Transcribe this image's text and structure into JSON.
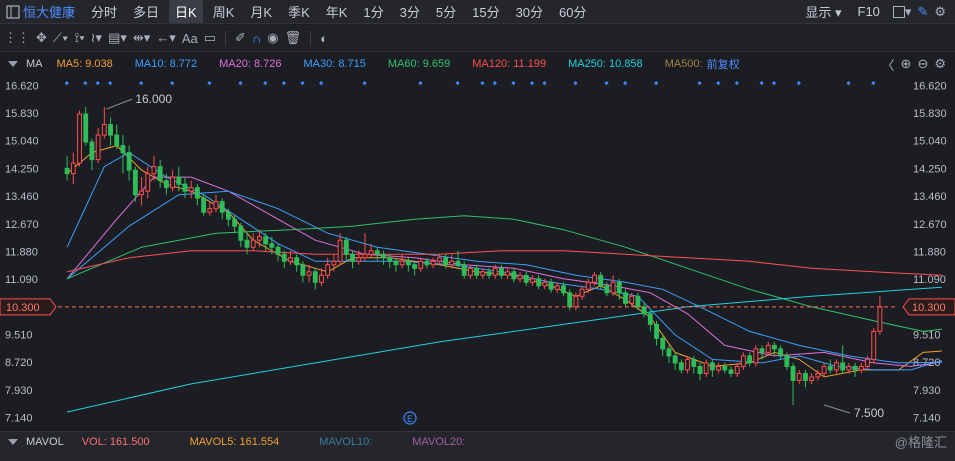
{
  "topbar": {
    "stock_name": "恒大健康",
    "periods": [
      "分时",
      "多日",
      "日K",
      "周K",
      "月K",
      "季K",
      "年K",
      "1分",
      "3分",
      "5分",
      "15分",
      "30分",
      "60分"
    ],
    "active_period": "日K",
    "display_label": "显示",
    "f10_label": "F10"
  },
  "toolbar": {
    "text_tool": "Aa"
  },
  "indicator_bar": {
    "name": "MA",
    "items": [
      {
        "label": "MA5: 9.038",
        "color": "#f0a030"
      },
      {
        "label": "MA10: 8.772",
        "color": "#3aa0ff"
      },
      {
        "label": "MA20: 8.726",
        "color": "#e070e0"
      },
      {
        "label": "MA30: 8.715",
        "color": "#3aa0ff"
      },
      {
        "label": "MA60: 9.659",
        "color": "#30c070"
      },
      {
        "label": "MA120: 11.199",
        "color": "#ff5050"
      },
      {
        "label": "MA250: 10.858",
        "color": "#20d0e0"
      },
      {
        "label": "MA500:",
        "color": "#a08040"
      }
    ],
    "adjust_label": "前复权"
  },
  "volume_bar": {
    "name": "MAVOL",
    "items": [
      {
        "label": "VOL: 161.500",
        "color": "#ff7070"
      },
      {
        "label": "MAVOL5: 161.554",
        "color": "#f0a030"
      },
      {
        "label": "MAVOL10:",
        "color": "#3a7aa0"
      },
      {
        "label": "MAVOL20:",
        "color": "#a060a0"
      }
    ]
  },
  "watermark": "@格隆汇",
  "chart_data": {
    "type": "candlestick",
    "y_ticks": [
      16.62,
      15.83,
      15.04,
      14.25,
      13.46,
      12.67,
      11.88,
      11.09,
      9.51,
      8.72,
      7.93,
      7.14
    ],
    "y_range": [
      6.9,
      16.8
    ],
    "current_price": 10.3,
    "annotations": [
      {
        "text": "16.000",
        "type": "high"
      },
      {
        "text": "7.500",
        "type": "low"
      }
    ],
    "event_marker": "E",
    "candles": [
      [
        14.25,
        14.1,
        14.6,
        13.9
      ],
      [
        14.1,
        14.4,
        14.7,
        13.8
      ],
      [
        14.4,
        15.8,
        15.9,
        14.3
      ],
      [
        15.8,
        15.0,
        16.0,
        14.9
      ],
      [
        15.0,
        14.5,
        15.1,
        14.2
      ],
      [
        14.5,
        15.2,
        15.4,
        14.4
      ],
      [
        15.2,
        15.5,
        16.0,
        15.1
      ],
      [
        15.5,
        15.2,
        15.7,
        14.9
      ],
      [
        15.2,
        14.9,
        15.5,
        14.8
      ],
      [
        14.9,
        14.7,
        15.2,
        14.1
      ],
      [
        14.7,
        14.2,
        14.9,
        13.9
      ],
      [
        14.2,
        13.5,
        14.3,
        13.3
      ],
      [
        13.5,
        13.6,
        14.0,
        13.2
      ],
      [
        13.6,
        14.1,
        14.3,
        13.4
      ],
      [
        14.1,
        14.3,
        14.6,
        13.9
      ],
      [
        14.3,
        13.9,
        14.5,
        13.7
      ],
      [
        13.9,
        13.7,
        14.1,
        13.5
      ],
      [
        13.7,
        14.0,
        14.2,
        13.6
      ],
      [
        14.0,
        13.8,
        14.3,
        13.6
      ],
      [
        13.8,
        13.6,
        14.0,
        13.4
      ],
      [
        13.6,
        13.7,
        13.9,
        13.4
      ],
      [
        13.7,
        13.4,
        13.8,
        13.2
      ],
      [
        13.4,
        13.0,
        13.5,
        12.9
      ],
      [
        13.0,
        13.1,
        13.3,
        12.9
      ],
      [
        13.1,
        13.3,
        13.5,
        13.0
      ],
      [
        13.3,
        13.0,
        13.4,
        12.8
      ],
      [
        13.0,
        12.8,
        13.1,
        12.6
      ],
      [
        12.8,
        12.6,
        12.9,
        12.4
      ],
      [
        12.6,
        12.2,
        12.7,
        12.0
      ],
      [
        12.2,
        12.0,
        12.4,
        11.8
      ],
      [
        12.0,
        12.2,
        12.4,
        11.9
      ],
      [
        12.2,
        12.3,
        12.5,
        12.0
      ],
      [
        12.3,
        12.1,
        12.4,
        11.9
      ],
      [
        12.1,
        12.0,
        12.3,
        11.8
      ],
      [
        12.0,
        11.8,
        12.1,
        11.6
      ],
      [
        11.8,
        11.6,
        11.9,
        11.4
      ],
      [
        11.6,
        11.7,
        11.9,
        11.5
      ],
      [
        11.7,
        11.5,
        11.8,
        11.3
      ],
      [
        11.5,
        11.2,
        11.6,
        11.0
      ],
      [
        11.2,
        11.3,
        11.5,
        11.0
      ],
      [
        11.3,
        11.0,
        11.4,
        10.8
      ],
      [
        11.0,
        11.2,
        11.4,
        10.9
      ],
      [
        11.2,
        11.5,
        11.7,
        11.1
      ],
      [
        11.5,
        11.6,
        11.8,
        11.3
      ],
      [
        11.6,
        12.2,
        12.4,
        11.5
      ],
      [
        12.2,
        11.8,
        12.3,
        11.6
      ],
      [
        11.8,
        11.6,
        11.9,
        11.4
      ],
      [
        11.6,
        11.7,
        11.9,
        11.5
      ],
      [
        11.7,
        11.8,
        12.4,
        11.6
      ],
      [
        11.8,
        11.9,
        12.1,
        11.7
      ],
      [
        11.9,
        11.8,
        12.0,
        11.6
      ],
      [
        11.8,
        11.7,
        11.9,
        11.5
      ],
      [
        11.7,
        11.6,
        11.8,
        11.4
      ],
      [
        11.6,
        11.5,
        11.7,
        11.3
      ],
      [
        11.5,
        11.6,
        11.8,
        11.4
      ],
      [
        11.6,
        11.5,
        11.7,
        11.3
      ],
      [
        11.5,
        11.4,
        11.6,
        11.2
      ],
      [
        11.4,
        11.6,
        11.7,
        11.3
      ],
      [
        11.6,
        11.5,
        11.7,
        11.4
      ],
      [
        11.5,
        11.6,
        11.7,
        11.4
      ],
      [
        11.6,
        11.7,
        11.8,
        11.5
      ],
      [
        11.7,
        11.5,
        11.8,
        11.4
      ],
      [
        11.5,
        11.6,
        11.8,
        11.4
      ],
      [
        11.6,
        11.5,
        11.9,
        11.4
      ],
      [
        11.5,
        11.2,
        11.6,
        11.1
      ],
      [
        11.2,
        11.4,
        11.5,
        11.1
      ],
      [
        11.4,
        11.2,
        11.5,
        11.1
      ],
      [
        11.2,
        11.3,
        11.4,
        11.1
      ],
      [
        11.3,
        11.2,
        11.4,
        11.1
      ],
      [
        11.2,
        11.4,
        11.5,
        11.1
      ],
      [
        11.4,
        11.2,
        11.5,
        11.1
      ],
      [
        11.2,
        11.3,
        11.4,
        11.1
      ],
      [
        11.3,
        11.1,
        11.4,
        11.0
      ],
      [
        11.1,
        11.2,
        11.3,
        11.0
      ],
      [
        11.2,
        11.0,
        11.3,
        10.9
      ],
      [
        11.0,
        11.1,
        11.2,
        10.9
      ],
      [
        11.1,
        10.9,
        11.2,
        10.8
      ],
      [
        10.9,
        11.0,
        11.1,
        10.8
      ],
      [
        11.0,
        10.8,
        11.1,
        10.7
      ],
      [
        10.8,
        10.9,
        11.0,
        10.7
      ],
      [
        10.9,
        10.7,
        11.0,
        10.6
      ],
      [
        10.7,
        10.3,
        10.8,
        10.2
      ],
      [
        10.3,
        10.6,
        10.7,
        10.2
      ],
      [
        10.6,
        10.8,
        10.9,
        10.5
      ],
      [
        10.8,
        11.0,
        11.1,
        10.7
      ],
      [
        11.0,
        11.2,
        11.3,
        10.9
      ],
      [
        11.2,
        10.9,
        11.3,
        10.8
      ],
      [
        10.9,
        10.7,
        11.0,
        10.6
      ],
      [
        10.7,
        11.0,
        11.2,
        10.6
      ],
      [
        11.0,
        10.7,
        11.1,
        10.5
      ],
      [
        10.7,
        10.4,
        10.8,
        10.3
      ],
      [
        10.4,
        10.6,
        10.7,
        10.3
      ],
      [
        10.6,
        10.3,
        10.7,
        10.2
      ],
      [
        10.3,
        10.1,
        10.4,
        10.0
      ],
      [
        10.1,
        9.8,
        10.2,
        9.6
      ],
      [
        9.8,
        9.4,
        9.9,
        9.2
      ],
      [
        9.4,
        9.1,
        9.5,
        8.9
      ],
      [
        9.1,
        8.9,
        9.2,
        8.7
      ],
      [
        8.9,
        8.7,
        9.0,
        8.5
      ],
      [
        8.7,
        8.5,
        8.8,
        8.4
      ],
      [
        8.5,
        8.8,
        8.9,
        8.4
      ],
      [
        8.8,
        8.6,
        8.9,
        8.4
      ],
      [
        8.6,
        8.4,
        8.7,
        8.2
      ],
      [
        8.4,
        8.7,
        8.8,
        8.3
      ],
      [
        8.7,
        8.5,
        8.8,
        8.3
      ],
      [
        8.5,
        8.6,
        8.7,
        8.4
      ],
      [
        8.6,
        8.5,
        8.7,
        8.4
      ],
      [
        8.5,
        8.4,
        8.6,
        8.3
      ],
      [
        8.4,
        8.6,
        8.7,
        8.3
      ],
      [
        8.6,
        8.9,
        9.0,
        8.5
      ],
      [
        8.9,
        8.7,
        9.0,
        8.6
      ],
      [
        8.7,
        9.1,
        9.2,
        8.6
      ],
      [
        9.1,
        9.0,
        9.2,
        8.8
      ],
      [
        9.0,
        9.2,
        9.3,
        8.9
      ],
      [
        9.2,
        9.1,
        9.3,
        8.9
      ],
      [
        9.1,
        8.9,
        9.2,
        8.8
      ],
      [
        8.9,
        8.6,
        9.0,
        8.5
      ],
      [
        8.6,
        8.2,
        8.7,
        7.5
      ],
      [
        8.2,
        8.4,
        8.5,
        8.1
      ],
      [
        8.4,
        8.2,
        8.5,
        8.0
      ],
      [
        8.2,
        8.3,
        8.4,
        8.1
      ],
      [
        8.3,
        8.4,
        8.5,
        8.2
      ],
      [
        8.4,
        8.6,
        8.7,
        8.3
      ],
      [
        8.6,
        8.5,
        8.8,
        8.4
      ],
      [
        8.5,
        8.7,
        8.8,
        8.4
      ],
      [
        8.7,
        8.5,
        9.2,
        8.4
      ],
      [
        8.5,
        8.6,
        8.7,
        8.4
      ],
      [
        8.6,
        8.5,
        8.7,
        8.3
      ],
      [
        8.5,
        8.6,
        8.7,
        8.4
      ],
      [
        8.6,
        8.8,
        8.9,
        8.5
      ],
      [
        8.8,
        9.6,
        9.7,
        8.7
      ],
      [
        9.6,
        10.3,
        10.6,
        9.5
      ]
    ],
    "ma_series": [
      {
        "name": "MA5",
        "color": "#f0a030",
        "values": [
          [
            0,
            14.1
          ],
          [
            4,
            14.7
          ],
          [
            8,
            14.9
          ],
          [
            12,
            14.2
          ],
          [
            16,
            13.8
          ],
          [
            20,
            13.6
          ],
          [
            26,
            13.0
          ],
          [
            30,
            12.2
          ],
          [
            36,
            11.6
          ],
          [
            42,
            11.3
          ],
          [
            46,
            11.7
          ],
          [
            52,
            11.7
          ],
          [
            60,
            11.5
          ],
          [
            66,
            11.3
          ],
          [
            72,
            11.2
          ],
          [
            78,
            10.9
          ],
          [
            82,
            10.6
          ],
          [
            86,
            10.9
          ],
          [
            90,
            10.5
          ],
          [
            94,
            10.0
          ],
          [
            98,
            9.0
          ],
          [
            104,
            8.6
          ],
          [
            110,
            8.7
          ],
          [
            114,
            9.0
          ],
          [
            118,
            8.8
          ],
          [
            122,
            8.3
          ],
          [
            128,
            8.5
          ],
          [
            134,
            8.5
          ],
          [
            138,
            9.0
          ],
          [
            141,
            9.04
          ]
        ]
      },
      {
        "name": "MA10",
        "color": "#3aa0ff",
        "values": [
          [
            0,
            12.0
          ],
          [
            6,
            14.3
          ],
          [
            10,
            14.7
          ],
          [
            16,
            14.0
          ],
          [
            22,
            13.5
          ],
          [
            28,
            12.8
          ],
          [
            34,
            12.1
          ],
          [
            40,
            11.6
          ],
          [
            46,
            11.6
          ],
          [
            54,
            11.6
          ],
          [
            62,
            11.5
          ],
          [
            70,
            11.3
          ],
          [
            78,
            11.0
          ],
          [
            86,
            10.8
          ],
          [
            92,
            10.6
          ],
          [
            98,
            9.5
          ],
          [
            104,
            8.8
          ],
          [
            112,
            8.7
          ],
          [
            118,
            8.9
          ],
          [
            124,
            8.6
          ],
          [
            130,
            8.5
          ],
          [
            136,
            8.5
          ],
          [
            141,
            8.77
          ]
        ]
      },
      {
        "name": "MA20",
        "color": "#e070e0",
        "values": [
          [
            0,
            11.1
          ],
          [
            8,
            12.8
          ],
          [
            14,
            14.0
          ],
          [
            20,
            14.0
          ],
          [
            26,
            13.6
          ],
          [
            32,
            13.0
          ],
          [
            40,
            12.2
          ],
          [
            48,
            11.8
          ],
          [
            56,
            11.7
          ],
          [
            64,
            11.5
          ],
          [
            72,
            11.4
          ],
          [
            80,
            11.1
          ],
          [
            88,
            10.9
          ],
          [
            94,
            10.7
          ],
          [
            100,
            10.1
          ],
          [
            106,
            9.2
          ],
          [
            114,
            8.9
          ],
          [
            122,
            9.0
          ],
          [
            130,
            8.7
          ],
          [
            136,
            8.6
          ],
          [
            141,
            8.73
          ]
        ]
      },
      {
        "name": "MA30",
        "color": "#3aa0ff",
        "values": [
          [
            0,
            11.1
          ],
          [
            10,
            12.6
          ],
          [
            18,
            13.5
          ],
          [
            26,
            13.6
          ],
          [
            34,
            13.1
          ],
          [
            42,
            12.4
          ],
          [
            50,
            12.0
          ],
          [
            58,
            11.8
          ],
          [
            66,
            11.6
          ],
          [
            74,
            11.5
          ],
          [
            82,
            11.2
          ],
          [
            90,
            11.0
          ],
          [
            96,
            10.8
          ],
          [
            102,
            10.3
          ],
          [
            110,
            9.6
          ],
          [
            118,
            9.2
          ],
          [
            126,
            8.9
          ],
          [
            134,
            8.7
          ],
          [
            141,
            8.72
          ]
        ]
      },
      {
        "name": "MA60",
        "color": "#30c070",
        "values": [
          [
            0,
            11.1
          ],
          [
            12,
            12.0
          ],
          [
            24,
            12.4
          ],
          [
            36,
            12.5
          ],
          [
            46,
            12.6
          ],
          [
            56,
            12.8
          ],
          [
            64,
            12.9
          ],
          [
            72,
            12.8
          ],
          [
            80,
            12.5
          ],
          [
            90,
            12.0
          ],
          [
            100,
            11.4
          ],
          [
            110,
            10.8
          ],
          [
            120,
            10.3
          ],
          [
            130,
            9.9
          ],
          [
            138,
            9.6
          ],
          [
            141,
            9.66
          ]
        ]
      },
      {
        "name": "MA120",
        "color": "#ff5050",
        "values": [
          [
            0,
            11.3
          ],
          [
            10,
            11.7
          ],
          [
            20,
            11.9
          ],
          [
            30,
            11.9
          ],
          [
            40,
            11.8
          ],
          [
            50,
            11.8
          ],
          [
            60,
            11.8
          ],
          [
            70,
            11.9
          ],
          [
            80,
            11.9
          ],
          [
            90,
            11.8
          ],
          [
            100,
            11.7
          ],
          [
            110,
            11.6
          ],
          [
            120,
            11.4
          ],
          [
            130,
            11.3
          ],
          [
            141,
            11.2
          ]
        ]
      },
      {
        "name": "MA250",
        "color": "#20d0e0",
        "values": [
          [
            0,
            7.3
          ],
          [
            20,
            8.1
          ],
          [
            40,
            8.7
          ],
          [
            60,
            9.3
          ],
          [
            80,
            9.8
          ],
          [
            100,
            10.3
          ],
          [
            120,
            10.6
          ],
          [
            141,
            10.86
          ]
        ]
      }
    ]
  }
}
